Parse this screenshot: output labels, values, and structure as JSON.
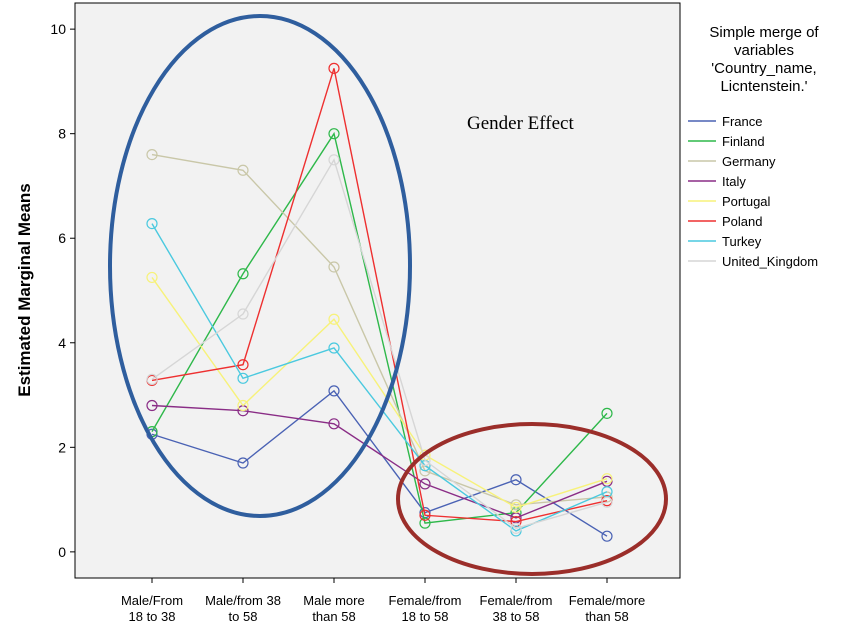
{
  "chart_data": {
    "type": "line",
    "title": "",
    "xlabel": "",
    "ylabel": "Estimated Marginal Means",
    "ylim": [
      -0.5,
      10.5
    ],
    "yticks": [
      0,
      2,
      4,
      6,
      8,
      10
    ],
    "grid": false,
    "legend_position": "right",
    "legend_title": [
      "Simple merge of",
      "variables",
      "'Country_name,",
      "Licntenstein.'"
    ],
    "categories": [
      [
        "Male/From",
        "18 to 38"
      ],
      [
        "Male/from 38",
        "to 58"
      ],
      [
        "Male more",
        "than 58"
      ],
      [
        "Female/from",
        "18 to 58"
      ],
      [
        "Female/from",
        "38 to 58"
      ],
      [
        "Female/more",
        "than 58"
      ]
    ],
    "series": [
      {
        "name": "France",
        "color": "#4a62b4",
        "values": [
          2.25,
          1.7,
          3.08,
          0.75,
          1.38,
          0.3
        ]
      },
      {
        "name": "Finland",
        "color": "#2eb84a",
        "values": [
          2.3,
          5.32,
          8.0,
          0.55,
          0.75,
          2.65
        ]
      },
      {
        "name": "Germany",
        "color": "#c9c7a8",
        "values": [
          7.6,
          7.3,
          5.45,
          1.55,
          0.9,
          1.05
        ]
      },
      {
        "name": "Italy",
        "color": "#8a2d86",
        "values": [
          2.8,
          2.7,
          2.45,
          1.3,
          0.65,
          1.35
        ]
      },
      {
        "name": "Portugal",
        "color": "#f7f27a",
        "values": [
          5.25,
          2.8,
          4.45,
          1.85,
          0.85,
          1.4
        ]
      },
      {
        "name": "Poland",
        "color": "#ee3030",
        "values": [
          3.28,
          3.58,
          9.25,
          0.7,
          0.58,
          0.98
        ]
      },
      {
        "name": "Turkey",
        "color": "#4ac9df",
        "values": [
          6.28,
          3.32,
          3.9,
          1.65,
          0.4,
          1.15
        ]
      },
      {
        "name": "United_Kingdom",
        "color": "#d6d6d6",
        "values": [
          3.3,
          4.55,
          7.5,
          1.75,
          0.45,
          0.95
        ]
      }
    ],
    "annotations": [
      {
        "text": "Gender Effect",
        "shape": "ellipse",
        "color": "#2f5e9e",
        "group": "male"
      },
      {
        "text": "",
        "shape": "ellipse",
        "color": "#9b2e2a",
        "group": "female"
      }
    ]
  }
}
